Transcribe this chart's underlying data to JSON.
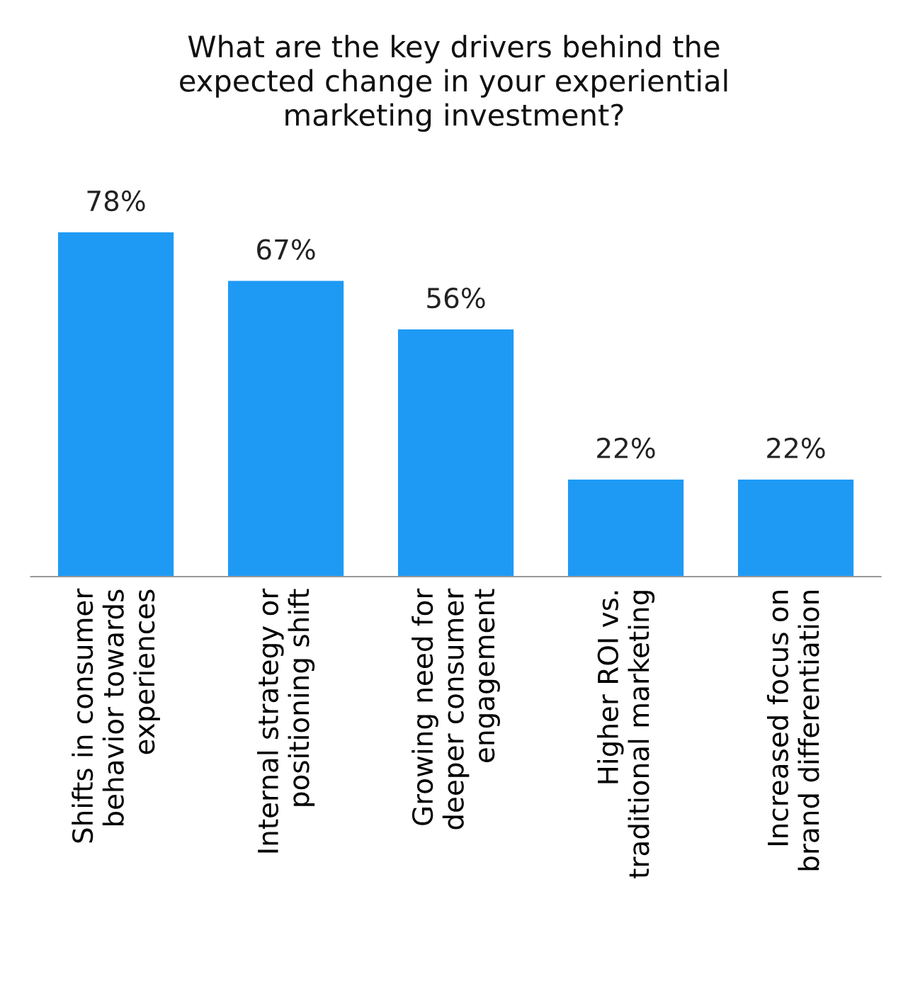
{
  "chart_data": {
    "type": "bar",
    "title": "What are the key drivers behind the\nexpected change in your experiential\nmarketing investment?",
    "categories": [
      "Shifts in consumer\nbehavior towards\nexperiences",
      "Internal strategy or\npositioning shift",
      "Growing need for\ndeeper consumer\nengagement",
      "Higher ROI vs.\ntraditional marketing",
      "Increased focus on\nbrand differentiation"
    ],
    "values": [
      78,
      67,
      56,
      22,
      22
    ],
    "value_labels": [
      "78%",
      "67%",
      "56%",
      "22%",
      "22%"
    ],
    "color": "#1e9af5",
    "grid": false,
    "legend": false
  }
}
